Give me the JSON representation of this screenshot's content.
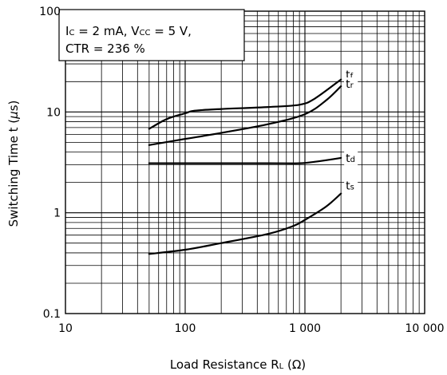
{
  "chart_data": {
    "type": "line",
    "title": "",
    "xlabel": "Load Resistance  R",
    "xlabel_sub": "L",
    "xlabel_unit": " (Ω)",
    "ylabel": "Switching Time  t (",
    "ylabel_mu": "μ",
    "ylabel_unit": "s)",
    "xscale": "log",
    "yscale": "log",
    "xlim": [
      10,
      10000
    ],
    "ylim": [
      0.1,
      100
    ],
    "x_tick_values": [
      10,
      100,
      1000,
      10000
    ],
    "x_tick_labels": [
      "10",
      "100",
      "1 000",
      "10 000"
    ],
    "y_tick_values": [
      0.1,
      1,
      10,
      100
    ],
    "y_tick_labels": [
      "0.1",
      "1",
      "10",
      "100"
    ],
    "grid": true,
    "legend": "none",
    "annotation": {
      "ic_main": "I",
      "ic_sub": "C",
      "ic_value": " = 2 mA, V",
      "vcc_sub": "CC",
      "vcc_value": " = 5 V,",
      "line2": "CTR = 236 %"
    },
    "series": [
      {
        "name": "t",
        "sub": "f",
        "x": [
          50,
          70,
          100,
          120,
          200,
          500,
          900,
          1200,
          2000
        ],
        "y": [
          6.8,
          8.5,
          9.7,
          10.3,
          10.7,
          11.2,
          11.8,
          13.5,
          21
        ]
      },
      {
        "name": "t",
        "sub": "r",
        "x": [
          50,
          100,
          200,
          500,
          1000,
          1500,
          2000
        ],
        "y": [
          4.7,
          5.4,
          6.2,
          7.6,
          9.5,
          13,
          18
        ]
      },
      {
        "name": "t",
        "sub": "d",
        "x": [
          50,
          100,
          500,
          900,
          1200,
          2000
        ],
        "y": [
          3.1,
          3.1,
          3.1,
          3.1,
          3.2,
          3.5
        ]
      },
      {
        "name": "t",
        "sub": "s",
        "x": [
          50,
          100,
          200,
          500,
          800,
          1000,
          1500,
          2000
        ],
        "y": [
          0.39,
          0.43,
          0.5,
          0.62,
          0.74,
          0.85,
          1.15,
          1.55
        ]
      }
    ]
  }
}
